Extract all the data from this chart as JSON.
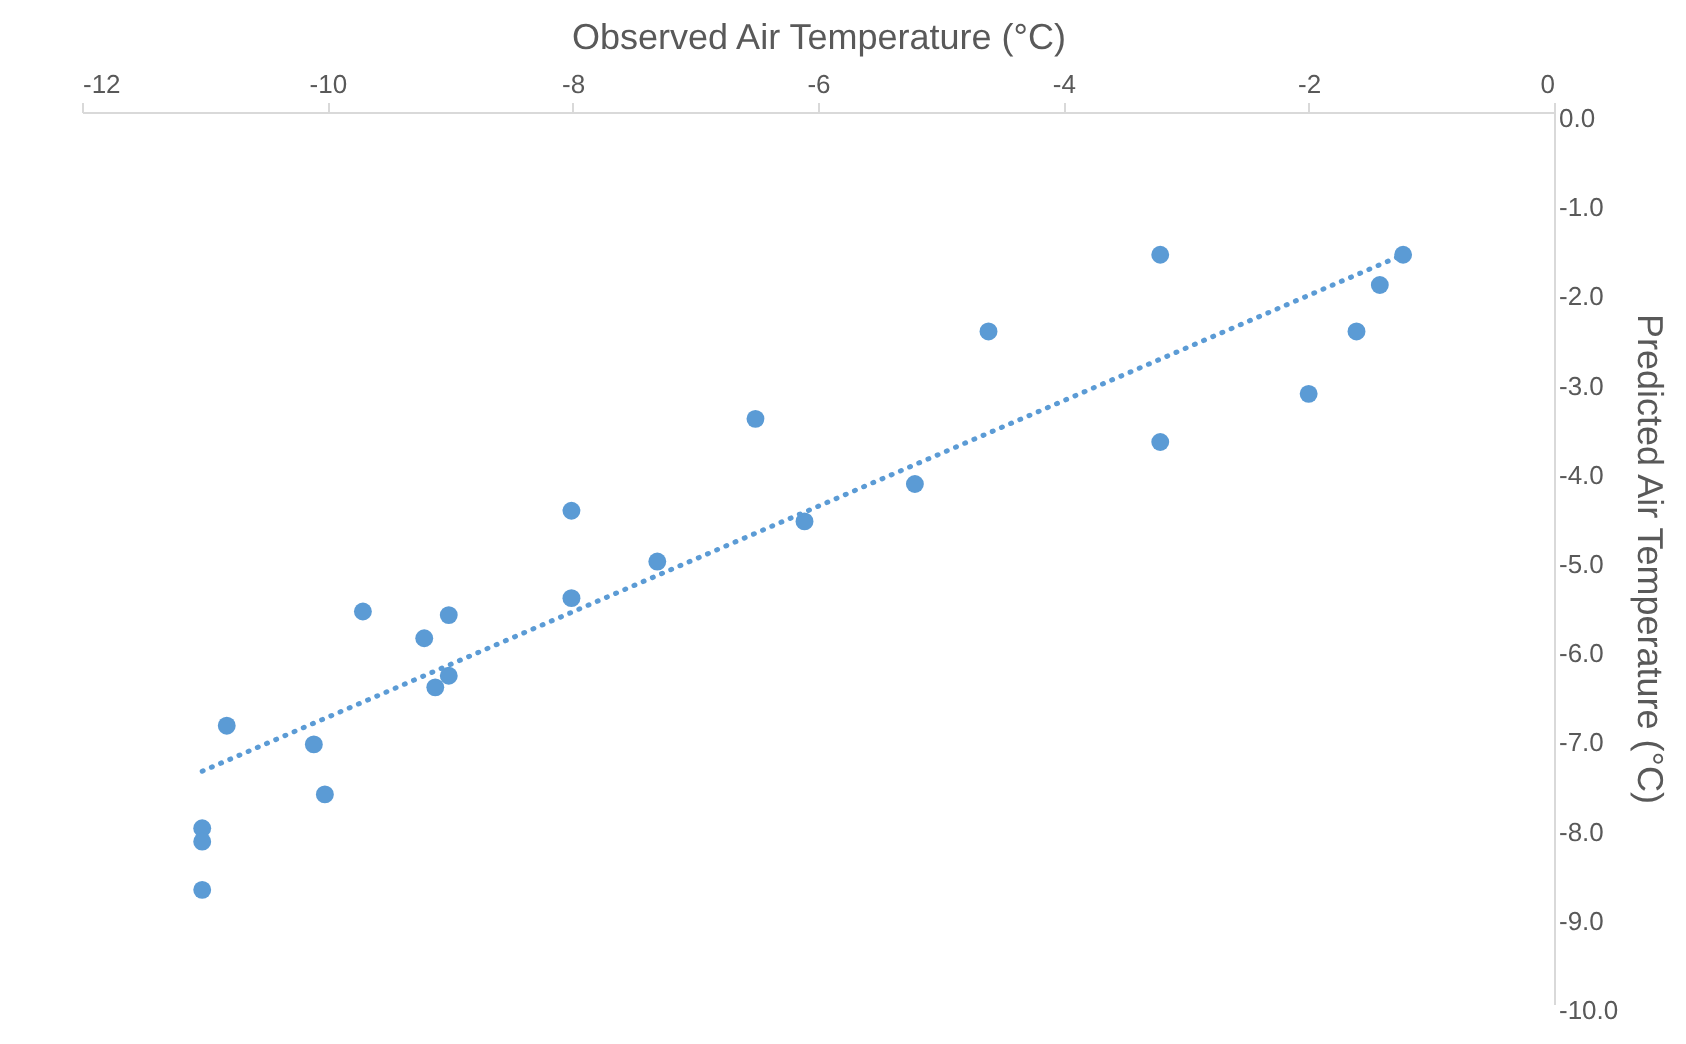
{
  "chart_data": {
    "type": "scatter",
    "xlabel": "Observed Air Temperature (°C)",
    "ylabel": "Predicted Air Temperature (°C)",
    "xlim": [
      -12,
      0
    ],
    "xticks": [
      -12,
      -10,
      -8,
      -6,
      -4,
      -2,
      0
    ],
    "ylim": [
      -10,
      0
    ],
    "yticks": [
      {
        "value": 0,
        "label": "0.0"
      },
      {
        "value": -1,
        "label": "-1.0"
      },
      {
        "value": -2,
        "label": "-2.0"
      },
      {
        "value": -3,
        "label": "-3.0"
      },
      {
        "value": -4,
        "label": "-4.0"
      },
      {
        "value": -5,
        "label": "-5.0"
      },
      {
        "value": -6,
        "label": "-6.0"
      },
      {
        "value": -7,
        "label": "-7.0"
      },
      {
        "value": -8,
        "label": "-8.0"
      },
      {
        "value": -9,
        "label": "-9.0"
      },
      {
        "value": -10,
        "label": "-10.0"
      }
    ],
    "grid": false,
    "legend": false,
    "marker": "circle",
    "series": [
      {
        "color": "#5b9bd5",
        "x": [
          -1.23,
          -1.42,
          -1.61,
          -2.0,
          -3.21,
          -3.21,
          -4.61,
          -5.21,
          -6.11,
          -6.51,
          -7.31,
          -8.01,
          -8.01,
          -9.01,
          -9.01,
          -9.12,
          -9.21,
          -9.71,
          -10.02,
          -10.11,
          -10.82,
          -11.02,
          -11.02,
          -11.02
        ],
        "values": [
          -1.6,
          -1.94,
          -2.46,
          -3.16,
          -1.6,
          -3.7,
          -2.46,
          -4.17,
          -4.59,
          -3.44,
          -5.04,
          -4.47,
          -5.45,
          -5.64,
          -6.32,
          -6.45,
          -5.9,
          -5.6,
          -7.65,
          -7.09,
          -6.88,
          -8.03,
          -8.18,
          -8.72
        ]
      },
      {
        "type": "line",
        "color": "#5b9bd5",
        "line_style": "dotted",
        "marker": "none",
        "x": [
          -11.02,
          -1.23
        ],
        "values": [
          -7.39,
          -1.6
        ]
      }
    ]
  }
}
